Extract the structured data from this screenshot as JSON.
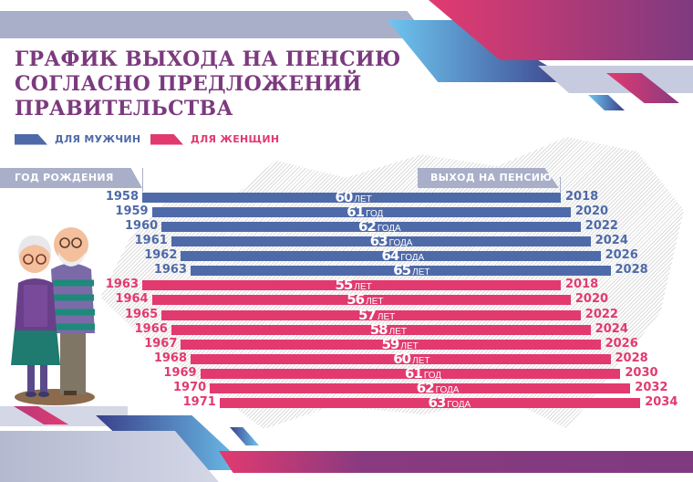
{
  "title": {
    "line1": "ГРАФИК ВЫХОДА НА ПЕНСИЮ",
    "line2": "СОГЛАСНО ПРЕДЛОЖЕНИЙ",
    "line3": "ПРАВИТЕЛЬСТВА"
  },
  "legend": {
    "men": {
      "label": "ДЛЯ МУЖЧИН",
      "color": "#4f6aa8"
    },
    "women": {
      "label": "ДЛЯ ЖЕНЩИН",
      "color": "#e23a6f"
    }
  },
  "headers": {
    "birth_year": "ГОД РОЖДЕНИЯ",
    "retirement": "ВЫХОД НА ПЕНСИЮ"
  },
  "colors": {
    "title": "#7b3a7e",
    "men": "#4f6aa8",
    "women": "#e23a6f",
    "header_bg": "#a9afc9"
  },
  "rows": [
    {
      "group": "men",
      "birth_year": "1958",
      "age": "60",
      "unit": "ЛЕТ",
      "retire_year": "2018"
    },
    {
      "group": "men",
      "birth_year": "1959",
      "age": "61",
      "unit": "ГОД",
      "retire_year": "2020"
    },
    {
      "group": "men",
      "birth_year": "1960",
      "age": "62",
      "unit": "ГОДА",
      "retire_year": "2022"
    },
    {
      "group": "men",
      "birth_year": "1961",
      "age": "63",
      "unit": "ГОДА",
      "retire_year": "2024"
    },
    {
      "group": "men",
      "birth_year": "1962",
      "age": "64",
      "unit": "ГОДА",
      "retire_year": "2026"
    },
    {
      "group": "men",
      "birth_year": "1963",
      "age": "65",
      "unit": "ЛЕТ",
      "retire_year": "2028"
    },
    {
      "group": "women",
      "birth_year": "1963",
      "age": "55",
      "unit": "ЛЕТ",
      "retire_year": "2018"
    },
    {
      "group": "women",
      "birth_year": "1964",
      "age": "56",
      "unit": "ЛЕТ",
      "retire_year": "2020"
    },
    {
      "group": "women",
      "birth_year": "1965",
      "age": "57",
      "unit": "ЛЕТ",
      "retire_year": "2022"
    },
    {
      "group": "women",
      "birth_year": "1966",
      "age": "58",
      "unit": "ЛЕТ",
      "retire_year": "2024"
    },
    {
      "group": "women",
      "birth_year": "1967",
      "age": "59",
      "unit": "ЛЕТ",
      "retire_year": "2026"
    },
    {
      "group": "women",
      "birth_year": "1968",
      "age": "60",
      "unit": "ЛЕТ",
      "retire_year": "2028"
    },
    {
      "group": "women",
      "birth_year": "1969",
      "age": "61",
      "unit": "ГОД",
      "retire_year": "2030"
    },
    {
      "group": "women",
      "birth_year": "1970",
      "age": "62",
      "unit": "ГОДА",
      "retire_year": "2032"
    },
    {
      "group": "women",
      "birth_year": "1971",
      "age": "63",
      "unit": "ГОДА",
      "retire_year": "2034"
    }
  ],
  "chart_data": {
    "type": "bar",
    "orientation": "horizontal",
    "title": "График выхода на пенсию согласно предложений правительства",
    "xlabel": "Выход на пенсию",
    "ylabel": "Год рождения",
    "legend": [
      "для мужчин",
      "для женщин"
    ],
    "legend_position": "top-left",
    "grid": false,
    "series": [
      {
        "name": "для мужчин",
        "color": "#4f6aa8",
        "birth_years": [
          1958,
          1959,
          1960,
          1961,
          1962,
          1963
        ],
        "retirement_age": [
          60,
          61,
          62,
          63,
          64,
          65
        ],
        "retirement_year": [
          2018,
          2020,
          2022,
          2024,
          2026,
          2028
        ]
      },
      {
        "name": "для женщин",
        "color": "#e23a6f",
        "birth_years": [
          1963,
          1964,
          1965,
          1966,
          1967,
          1968,
          1969,
          1970,
          1971
        ],
        "retirement_age": [
          55,
          56,
          57,
          58,
          59,
          60,
          61,
          62,
          63
        ],
        "retirement_year": [
          2018,
          2020,
          2022,
          2024,
          2026,
          2028,
          2030,
          2032,
          2034
        ]
      }
    ]
  }
}
